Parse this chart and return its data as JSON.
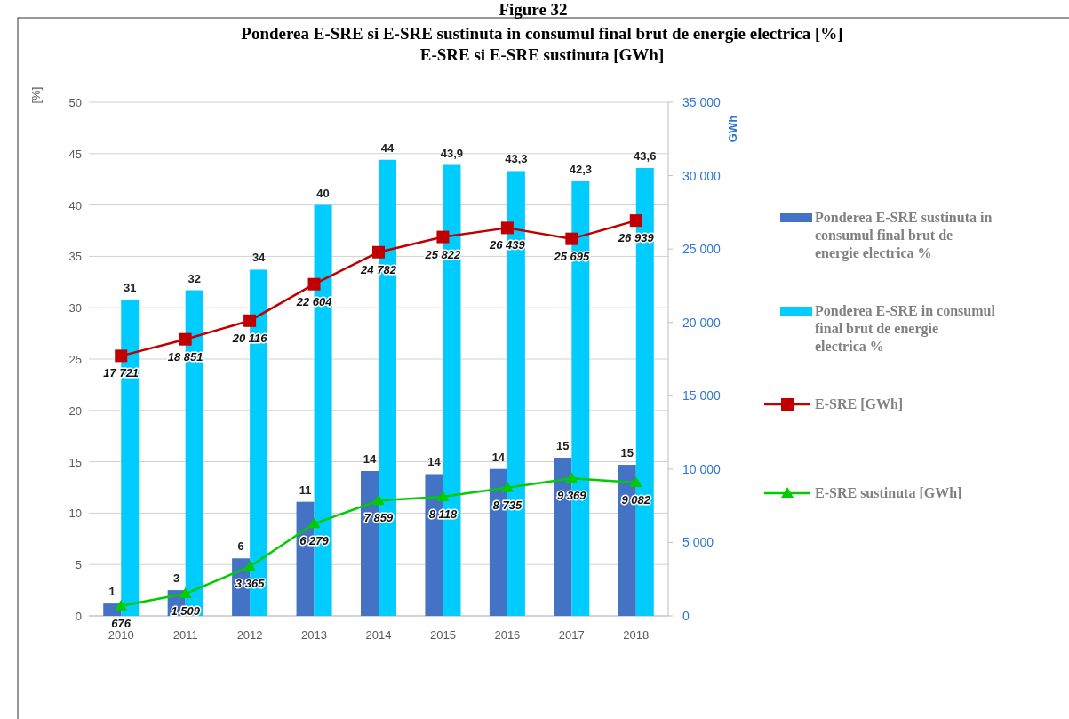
{
  "chart_data": {
    "type": "bar",
    "title": "Ponderea E-SRE si E-SRE sustinuta in consumul final brut de energie electrica [%]",
    "subtitle": "E-SRE si E-SRE sustinuta [GWh]",
    "annotations": [
      "Figure 32"
    ],
    "categories": [
      "2010",
      "2011",
      "2012",
      "2013",
      "2014",
      "2015",
      "2016",
      "2017",
      "2018"
    ],
    "ylabel": "[%]",
    "y2label": "GWh",
    "ylim": [
      0,
      50
    ],
    "yticks": [
      0,
      5,
      10,
      15,
      20,
      25,
      30,
      35,
      40,
      45,
      50
    ],
    "y2lim": [
      0,
      35000
    ],
    "y2ticks": [
      {
        "value": 0,
        "label": "0"
      },
      {
        "value": 5000,
        "label": "5 000"
      },
      {
        "value": 10000,
        "label": "10 000"
      },
      {
        "value": 15000,
        "label": "15 000"
      },
      {
        "value": 20000,
        "label": "20 000"
      },
      {
        "value": 25000,
        "label": "25 000"
      },
      {
        "value": 30000,
        "label": "30 000"
      },
      {
        "value": 35000,
        "label": "35 000"
      }
    ],
    "grid": "y",
    "legend": "right",
    "series": [
      {
        "name": "Ponderea E-SRE sustinuta in consumul final brut de energie electrica %",
        "color": "#4472c4",
        "values": [
          1.2,
          2.5,
          5.6,
          11.1,
          14.1,
          13.8,
          14.3,
          15.4,
          14.7
        ],
        "value_labels": [
          "1",
          "3",
          "6",
          "11",
          "14",
          "14",
          "14",
          "15",
          "15"
        ]
      },
      {
        "name": "Ponderea E-SRE in consumul final brut de energie electrica %",
        "color": "#00ccff",
        "values": [
          30.8,
          31.7,
          33.7,
          40,
          44.4,
          43.9,
          43.3,
          42.3,
          43.6
        ],
        "value_labels": [
          "31",
          "32",
          "34",
          "40",
          "44",
          "43,9",
          "43,3",
          "42,3",
          "43,6"
        ]
      },
      {
        "name": "E-SRE [GWh]",
        "type": "line",
        "axis": "y2",
        "color": "#c00000",
        "marker": "square",
        "values": [
          17721,
          18851,
          20116,
          22604,
          24782,
          25822,
          26439,
          25695,
          26939
        ],
        "value_labels": [
          "17 721",
          "18 851",
          "20 116",
          "22 604",
          "24 782",
          "25 822",
          "26 439",
          "25 695",
          "26 939"
        ]
      },
      {
        "name": "E-SRE sustinuta [GWh]",
        "type": "line",
        "axis": "y2",
        "color": "#00cc00",
        "marker": "triangle",
        "values": [
          676,
          1509,
          3365,
          6279,
          7859,
          8118,
          8735,
          9369,
          9082
        ],
        "value_labels": [
          "676",
          "1 509",
          "3 365",
          "6 279",
          "7 859",
          "8 118",
          "8 735",
          "9 369",
          "9 082"
        ]
      }
    ]
  }
}
